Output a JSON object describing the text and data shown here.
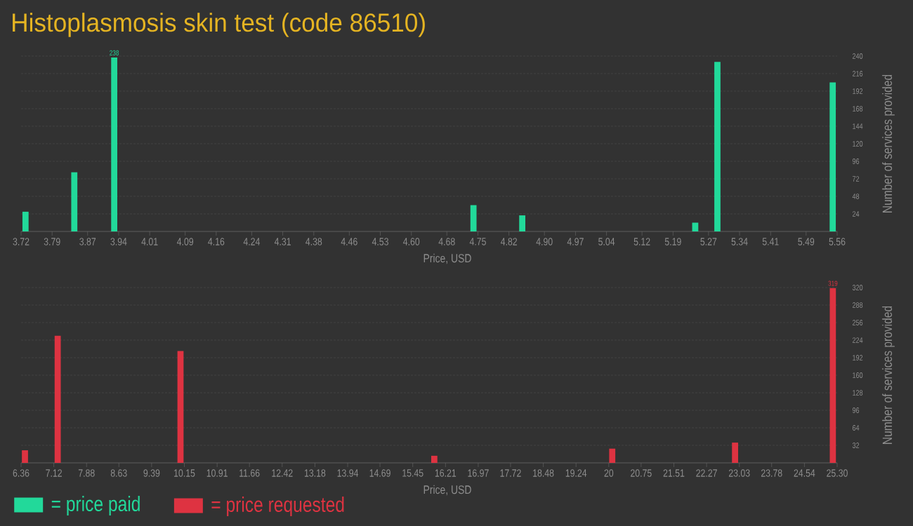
{
  "chart_data": [
    {
      "type": "bar",
      "title": "Histoplasmosis skin test (code 86510)",
      "xlabel": "Price, USD",
      "ylabel": "Number of services provided",
      "x": [
        3.73,
        3.84,
        3.93,
        4.74,
        4.85,
        5.24,
        5.29,
        5.55
      ],
      "series": [
        {
          "name": "= price paid",
          "color": "#22d99a",
          "values": [
            27,
            81,
            238,
            36,
            22,
            12,
            232,
            204
          ],
          "value_labels": [
            null,
            null,
            "238",
            null,
            null,
            null,
            null,
            null
          ]
        }
      ],
      "xlim": [
        3.72,
        5.56
      ],
      "xticks": [
        3.72,
        3.79,
        3.87,
        3.94,
        4.01,
        4.09,
        4.16,
        4.24,
        4.31,
        4.38,
        4.46,
        4.53,
        {
          "value": 4.6,
          "label": "4.60"
        },
        4.68,
        4.75,
        4.82,
        {
          "value": 4.9,
          "label": "4.90"
        },
        4.97,
        5.04,
        5.12,
        5.19,
        5.27,
        5.34,
        5.41,
        5.49,
        5.56
      ],
      "ylim": [
        0,
        240
      ],
      "yticks": [
        24,
        48,
        72,
        96,
        120,
        144,
        168,
        192,
        216,
        240
      ],
      "grid": "y",
      "legend": "bottom left"
    },
    {
      "type": "bar",
      "xlabel": "Price, USD",
      "ylabel": "Number of services provided",
      "x": [
        6.45,
        7.21,
        10.06,
        15.95,
        20.08,
        22.93,
        25.2
      ],
      "series": [
        {
          "name": "= price requested",
          "color": "#de3341",
          "values": [
            23,
            232,
            204,
            13,
            26,
            37,
            319
          ],
          "value_labels": [
            null,
            null,
            null,
            null,
            null,
            null,
            "319"
          ]
        }
      ],
      "xlim": [
        6.36,
        25.3
      ],
      "xticks": [
        6.36,
        7.12,
        7.88,
        8.63,
        9.39,
        10.15,
        10.91,
        11.66,
        12.42,
        13.18,
        13.94,
        14.69,
        15.45,
        16.21,
        16.97,
        17.72,
        18.48,
        19.24,
        20,
        20.75,
        21.51,
        22.27,
        23.03,
        23.78,
        24.54,
        {
          "value": 25.3,
          "label": "25.30"
        }
      ],
      "ylim": [
        0,
        320
      ],
      "yticks": [
        32,
        64,
        96,
        128,
        160,
        192,
        224,
        256,
        288,
        320
      ],
      "grid": "y",
      "legend": "bottom left"
    }
  ]
}
